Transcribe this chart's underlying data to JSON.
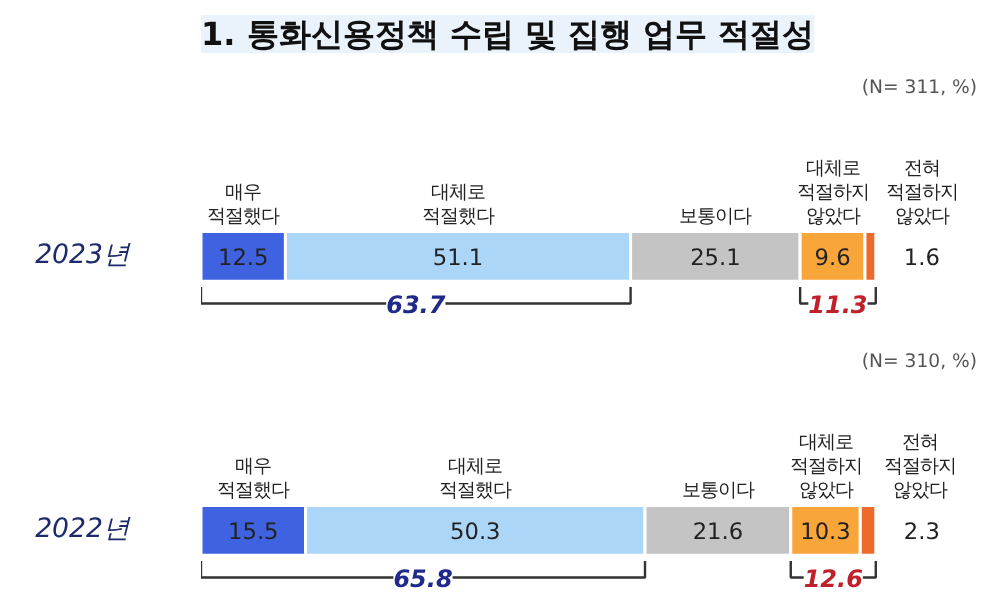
{
  "chart_data": [
    {
      "type": "bar",
      "orientation": "horizontal",
      "stacked": true,
      "title": "1. 통화신용정책 수립 및 집행 업무 적절성",
      "subtitle": "(N= 311, %)",
      "categories": [
        "2023년"
      ],
      "tick_labels": "y",
      "legend": false,
      "data_labels": true,
      "series": [
        {
          "name": "매우\n적절했다",
          "color": "#3f63e0",
          "values": [
            12.5
          ]
        },
        {
          "name": "대체로\n적절했다",
          "color": "#acd6f8",
          "values": [
            51.1
          ]
        },
        {
          "name": "보통이다",
          "color": "#c4c4c4",
          "values": [
            25.1
          ]
        },
        {
          "name": "대체로\n적절하지\n않았다",
          "color": "#f8a53a",
          "values": [
            9.6
          ]
        },
        {
          "name": "전혀\n적절하지\n않았다",
          "color": "#ee6a2a",
          "values": [
            1.6
          ]
        }
      ],
      "annotations": [
        "63.7",
        "11.3"
      ]
    },
    {
      "type": "bar",
      "orientation": "horizontal",
      "stacked": true,
      "subtitle": "(N= 310, %)",
      "categories": [
        "2022년"
      ],
      "tick_labels": "y",
      "legend": false,
      "data_labels": true,
      "series": [
        {
          "name": "매우\n적절했다",
          "color": "#3f63e0",
          "values": [
            15.5
          ]
        },
        {
          "name": "대체로\n적절했다",
          "color": "#acd6f8",
          "values": [
            50.3
          ]
        },
        {
          "name": "보통이다",
          "color": "#c4c4c4",
          "values": [
            21.6
          ]
        },
        {
          "name": "대체로\n적절하지\n않았다",
          "color": "#f8a53a",
          "values": [
            10.3
          ]
        },
        {
          "name": "전혀\n적절하지\n않았다",
          "color": "#ee6a2a",
          "values": [
            2.3
          ]
        }
      ],
      "annotations": [
        "65.8",
        "12.6"
      ]
    }
  ]
}
